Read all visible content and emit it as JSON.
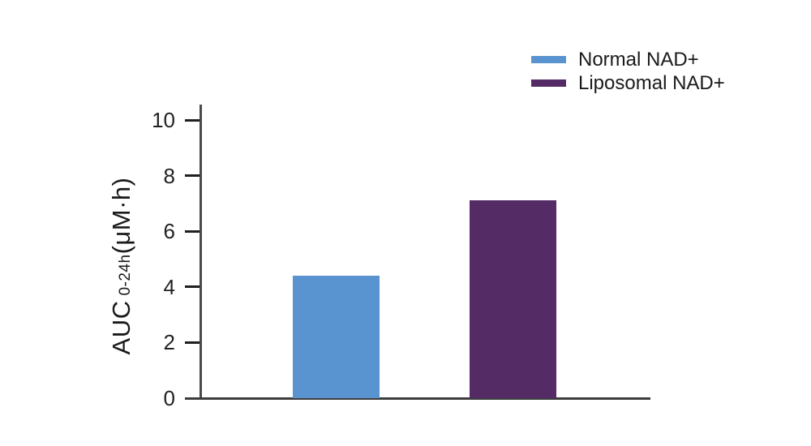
{
  "chart_data": {
    "type": "bar",
    "title": "",
    "xlabel": "",
    "ylabel": "AUC 0-24h(μM·h)",
    "ylabel_parts": {
      "prefix": "AUC",
      "subscript": "0-24h",
      "suffix": "(μM·h)"
    },
    "categories": [
      "Normal NAD+",
      "Liposomal NAD+"
    ],
    "values": [
      4.4,
      7.1
    ],
    "bar_colors": [
      "#5A94D0",
      "#552B66"
    ],
    "yticks": [
      0,
      2,
      4,
      6,
      8,
      10
    ],
    "ylim": [
      0,
      10
    ],
    "grid": false,
    "legend": {
      "position": "top-right",
      "entries": [
        {
          "label": "Normal NAD+",
          "color": "#5A94D0"
        },
        {
          "label": "Liposomal NAD+",
          "color": "#552B66"
        }
      ]
    },
    "axis_color": "#3d3d3d",
    "text_color": "#1a1a1a"
  }
}
